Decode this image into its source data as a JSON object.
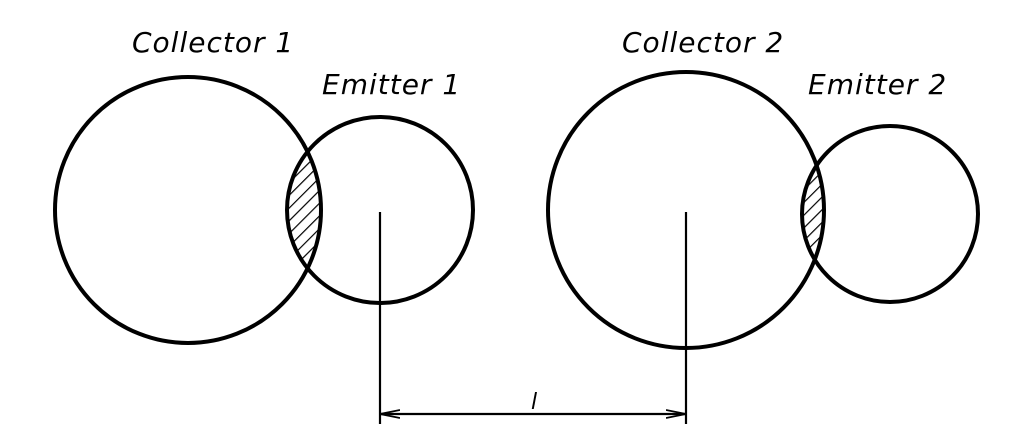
{
  "labels": {
    "collector_1": "Collector 1",
    "emitter_1": "Emitter 1",
    "collector_2": "Collector 2",
    "emitter_2": "Emitter 2",
    "distance": "l"
  },
  "colors": {
    "stroke": "#000000",
    "background": "#ffffff"
  }
}
